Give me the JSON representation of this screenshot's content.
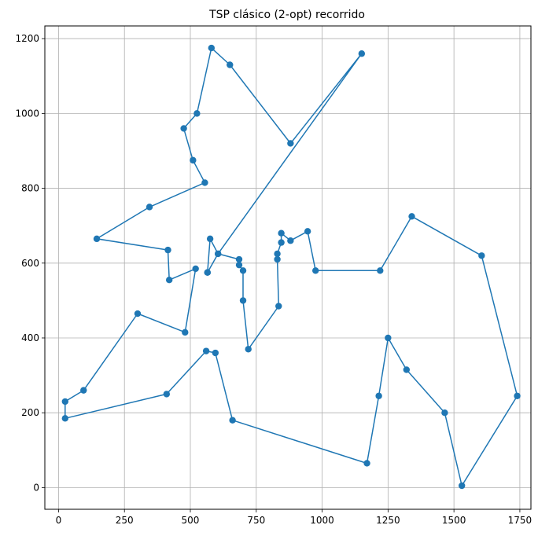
{
  "chart_data": {
    "type": "line",
    "title": "TSP clásico (2-opt) recorrido",
    "xlabel": "",
    "ylabel": "",
    "xlim": [
      -52,
      1792
    ],
    "ylim": [
      -58,
      1234
    ],
    "xticks": [
      0,
      250,
      500,
      750,
      1000,
      1250,
      1500,
      1750
    ],
    "yticks": [
      0,
      200,
      400,
      600,
      800,
      1000,
      1200
    ],
    "grid": true,
    "series": [
      {
        "color": "#1f77b4",
        "marker": "circle",
        "x": [
          565,
          575,
          605,
          685,
          685,
          700,
          700,
          720,
          835,
          830,
          830,
          845,
          845,
          880,
          945,
          975,
          1220,
          1340,
          1605,
          1740,
          1530,
          1465,
          1320,
          1250,
          1215,
          1170,
          660,
          595,
          560,
          410,
          25,
          25,
          95,
          300,
          480,
          520,
          420,
          415,
          145,
          345,
          555,
          510,
          475,
          525,
          580,
          650,
          880,
          1150,
          605,
          565
        ],
        "y": [
          575,
          665,
          625,
          610,
          595,
          580,
          500,
          370,
          485,
          610,
          625,
          655,
          680,
          660,
          685,
          580,
          580,
          725,
          620,
          245,
          5,
          200,
          315,
          400,
          245,
          65,
          180,
          360,
          365,
          250,
          185,
          230,
          260,
          465,
          415,
          585,
          555,
          635,
          665,
          750,
          815,
          875,
          960,
          1000,
          1175,
          1130,
          920,
          1160,
          625,
          575
        ]
      }
    ]
  }
}
